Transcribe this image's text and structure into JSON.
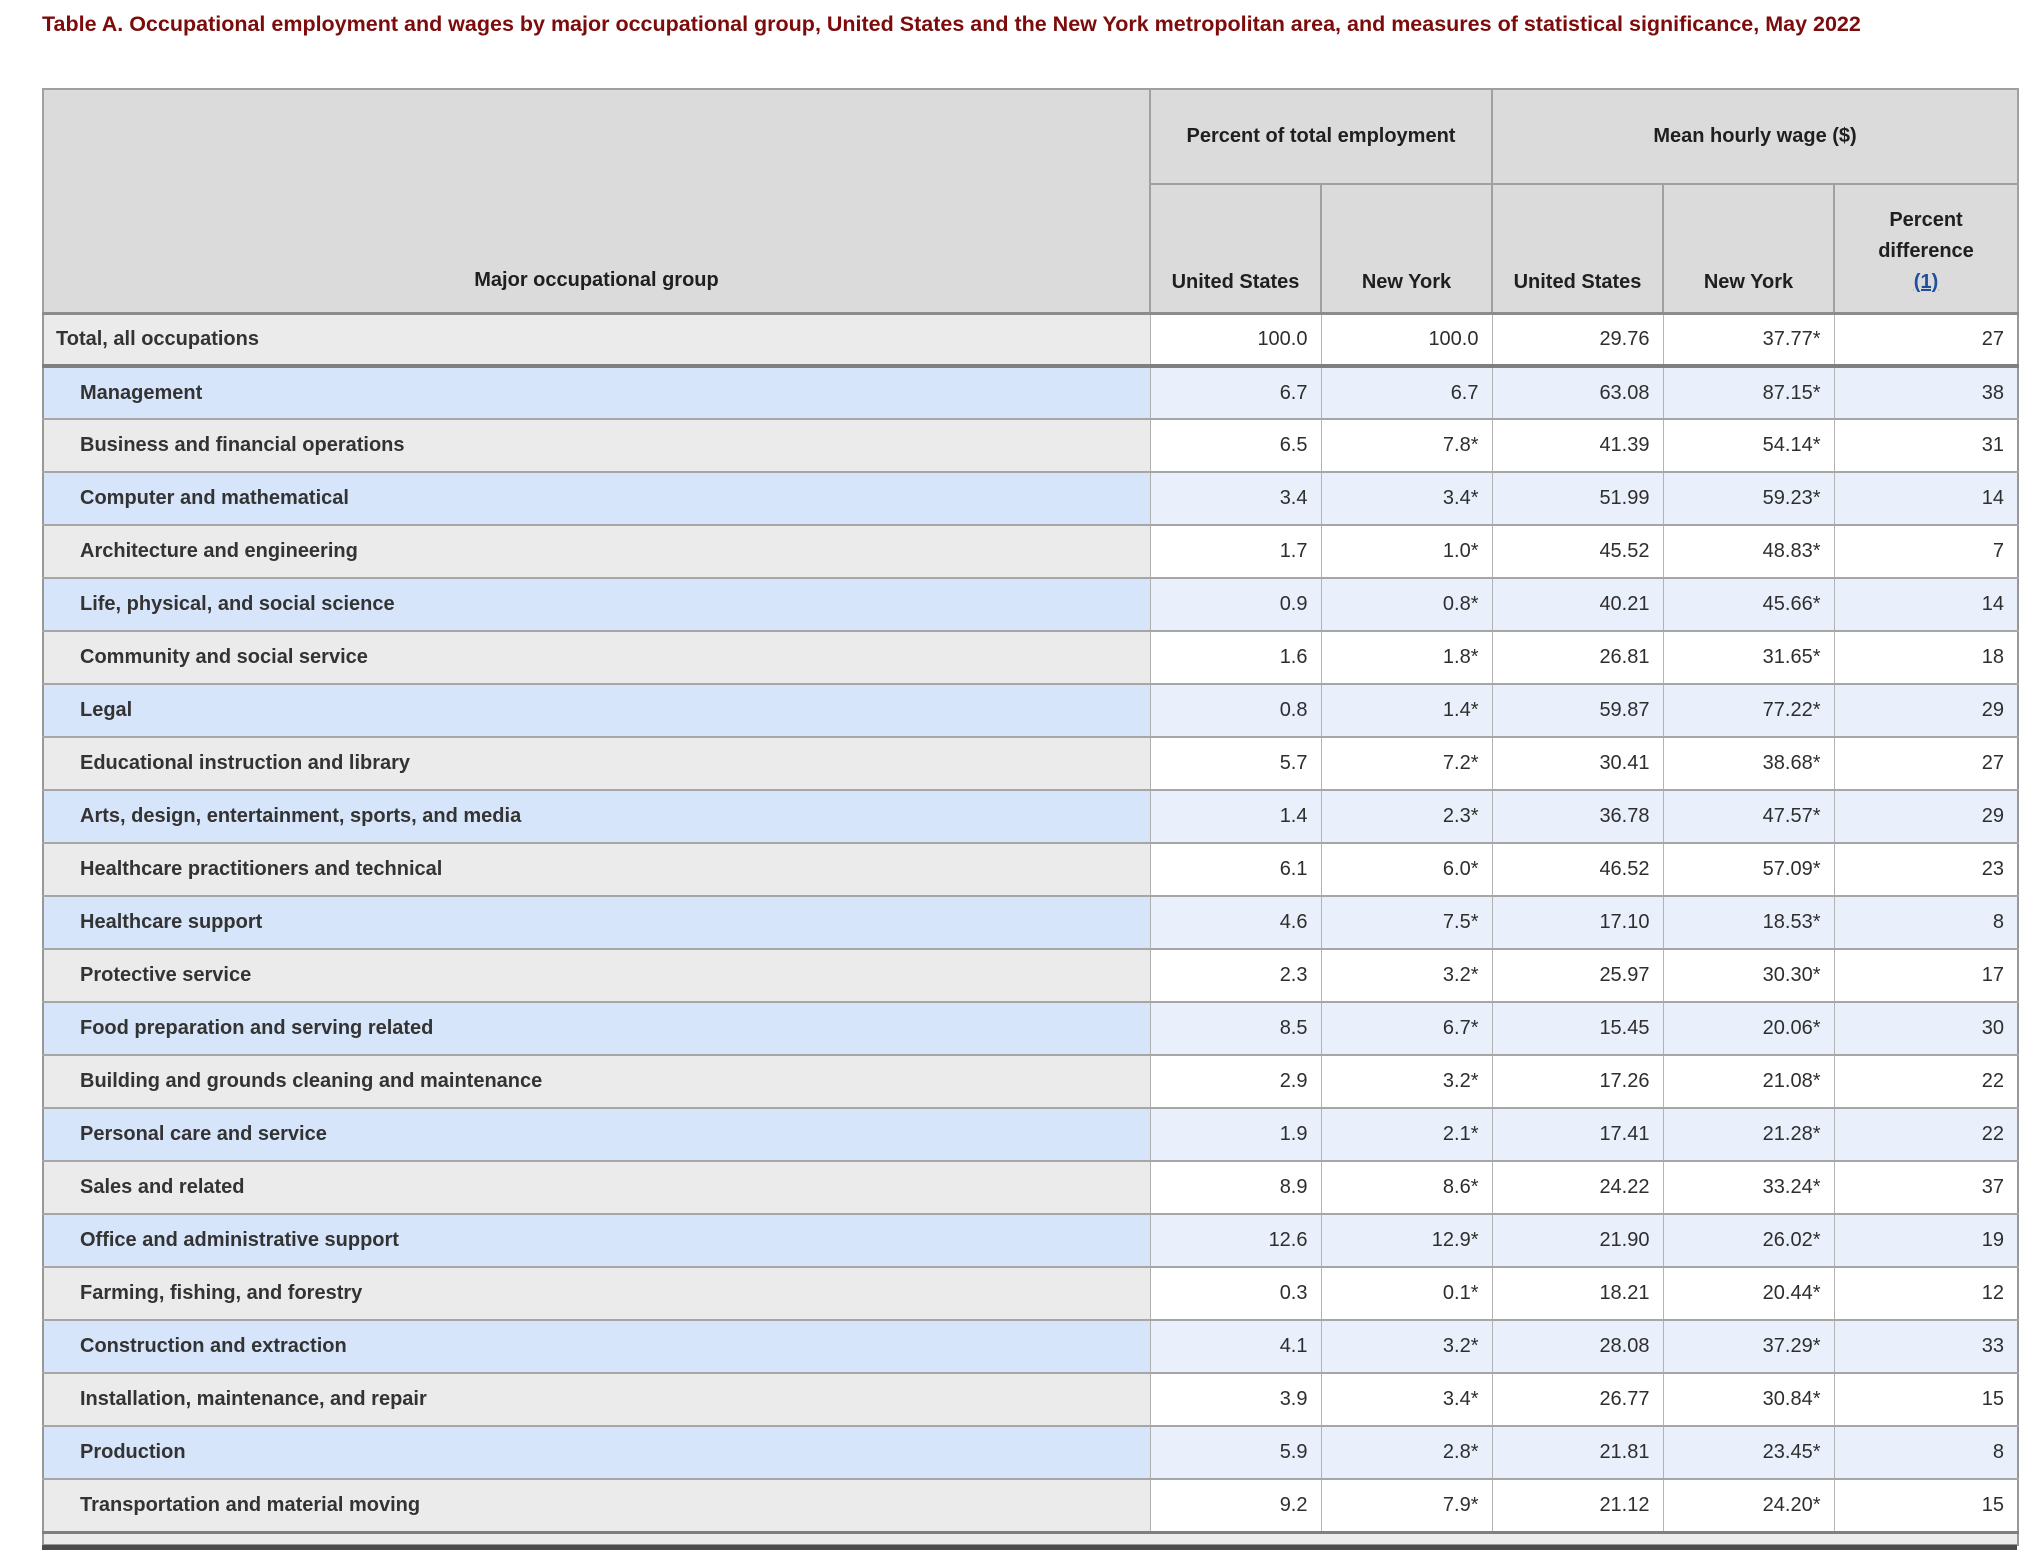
{
  "title": "Table A. Occupational employment and wages by major occupational group, United States and the New York metropolitan area, and measures of statistical significance, May 2022",
  "colors": {
    "title_text": "#7d0b0b",
    "header_background": "#dbdbdb",
    "row_label_gray": "#ebebeb",
    "row_label_blue": "#d6e5fa",
    "row_cell_blue": "#e9f0fb",
    "row_cell_white": "#ffffff",
    "footnote_link": "#1f4f9e",
    "border_gray": "#a6a6a6",
    "thick_border": "#7f7f7f"
  },
  "table": {
    "row_header_label": "Major occupational group",
    "col_groups": [
      {
        "label": "Percent of total employment",
        "span": 2
      },
      {
        "label": "Mean hourly wage ($)",
        "span": 3
      }
    ],
    "sub_headers": [
      "United States",
      "New York",
      "United States",
      "New York"
    ],
    "percent_diff": {
      "label": "Percent difference",
      "footnote": "(1)"
    },
    "rows": [
      {
        "label": "Total, all occupations",
        "values": [
          "100.0",
          "100.0",
          "29.76",
          "37.77*",
          "27"
        ]
      },
      {
        "label": "Management",
        "values": [
          "6.7",
          "6.7",
          "63.08",
          "87.15*",
          "38"
        ]
      },
      {
        "label": "Business and financial operations",
        "values": [
          "6.5",
          "7.8*",
          "41.39",
          "54.14*",
          "31"
        ]
      },
      {
        "label": "Computer and mathematical",
        "values": [
          "3.4",
          "3.4*",
          "51.99",
          "59.23*",
          "14"
        ]
      },
      {
        "label": "Architecture and engineering",
        "values": [
          "1.7",
          "1.0*",
          "45.52",
          "48.83*",
          "7"
        ]
      },
      {
        "label": "Life, physical, and social science",
        "values": [
          "0.9",
          "0.8*",
          "40.21",
          "45.66*",
          "14"
        ]
      },
      {
        "label": "Community and social service",
        "values": [
          "1.6",
          "1.8*",
          "26.81",
          "31.65*",
          "18"
        ]
      },
      {
        "label": "Legal",
        "values": [
          "0.8",
          "1.4*",
          "59.87",
          "77.22*",
          "29"
        ]
      },
      {
        "label": "Educational instruction and library",
        "values": [
          "5.7",
          "7.2*",
          "30.41",
          "38.68*",
          "27"
        ]
      },
      {
        "label": "Arts, design, entertainment, sports, and media",
        "values": [
          "1.4",
          "2.3*",
          "36.78",
          "47.57*",
          "29"
        ]
      },
      {
        "label": "Healthcare practitioners and technical",
        "values": [
          "6.1",
          "6.0*",
          "46.52",
          "57.09*",
          "23"
        ]
      },
      {
        "label": "Healthcare support",
        "values": [
          "4.6",
          "7.5*",
          "17.10",
          "18.53*",
          "8"
        ]
      },
      {
        "label": "Protective service",
        "values": [
          "2.3",
          "3.2*",
          "25.97",
          "30.30*",
          "17"
        ]
      },
      {
        "label": "Food preparation and serving related",
        "values": [
          "8.5",
          "6.7*",
          "15.45",
          "20.06*",
          "30"
        ]
      },
      {
        "label": "Building and grounds cleaning and maintenance",
        "values": [
          "2.9",
          "3.2*",
          "17.26",
          "21.08*",
          "22"
        ]
      },
      {
        "label": "Personal care and service",
        "values": [
          "1.9",
          "2.1*",
          "17.41",
          "21.28*",
          "22"
        ]
      },
      {
        "label": "Sales and related",
        "values": [
          "8.9",
          "8.6*",
          "24.22",
          "33.24*",
          "37"
        ]
      },
      {
        "label": "Office and administrative support",
        "values": [
          "12.6",
          "12.9*",
          "21.90",
          "26.02*",
          "19"
        ]
      },
      {
        "label": "Farming, fishing, and forestry",
        "values": [
          "0.3",
          "0.1*",
          "18.21",
          "20.44*",
          "12"
        ]
      },
      {
        "label": "Construction and extraction",
        "values": [
          "4.1",
          "3.2*",
          "28.08",
          "37.29*",
          "33"
        ]
      },
      {
        "label": "Installation, maintenance, and repair",
        "values": [
          "3.9",
          "3.4*",
          "26.77",
          "30.84*",
          "15"
        ]
      },
      {
        "label": "Production",
        "values": [
          "5.9",
          "2.8*",
          "21.81",
          "23.45*",
          "8"
        ]
      },
      {
        "label": "Transportation and material moving",
        "values": [
          "9.2",
          "7.9*",
          "21.12",
          "24.20*",
          "15"
        ]
      }
    ]
  }
}
